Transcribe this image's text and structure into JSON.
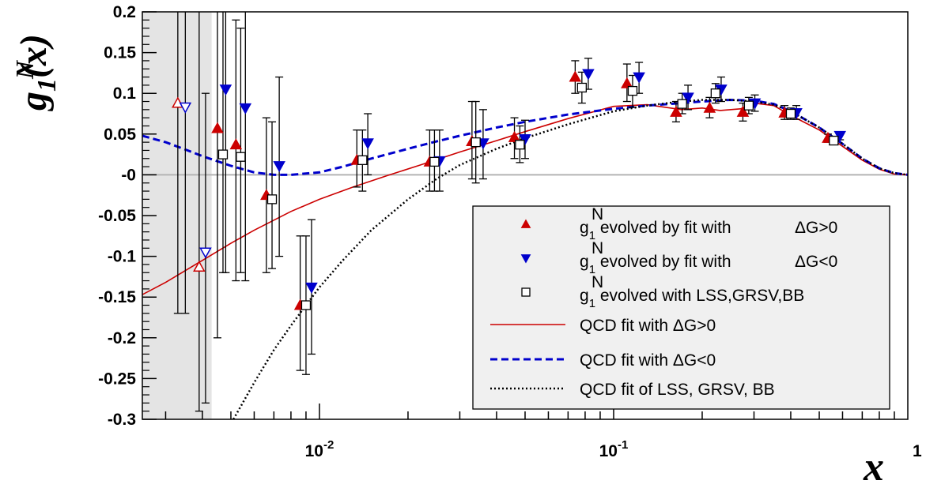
{
  "chart_data": {
    "type": "scatter",
    "title": "",
    "xlabel": "x",
    "ylabel": "g",
    "ylabel_sup": "N",
    "ylabel_sub": "1",
    "ylabel_arg": "(x)",
    "x_scale": "log",
    "xlim": [
      0.0025,
      1
    ],
    "ylim": [
      -0.3,
      0.2
    ],
    "x_tick_labels": [
      {
        "base": "10",
        "exp": "-2",
        "value": 0.01
      },
      {
        "base": "10",
        "exp": "-1",
        "value": 0.1
      },
      {
        "base": "1",
        "exp": "",
        "value": 1
      }
    ],
    "y_tick_labels": [
      "-0.3",
      "-0.25",
      "-0.2",
      "-0.15",
      "-0.1",
      "-0.05",
      "-0",
      "0.05",
      "0.1",
      "0.15",
      "0.2"
    ],
    "y_tick_values": [
      -0.3,
      -0.25,
      -0.2,
      -0.15,
      -0.1,
      -0.05,
      0,
      0.05,
      0.1,
      0.15,
      0.2
    ],
    "grid": false,
    "zero_line": true,
    "shaded_region_x": [
      0.0025,
      0.0043
    ],
    "legend_position": "bottom-right",
    "legend": [
      {
        "marker": "triangle-up",
        "color": "#cc0000",
        "g": "g",
        "sub": "1",
        "sup": "N",
        "text": "evolved by fit with",
        "tail": "ΔG>0"
      },
      {
        "marker": "triangle-down",
        "color": "#0000cc",
        "g": "g",
        "sub": "1",
        "sup": "N",
        "text": "evolved by fit with",
        "tail": "ΔG<0"
      },
      {
        "marker": "square-open",
        "color": "#000000",
        "g": "g",
        "sub": "1",
        "sup": "N",
        "text": "evolved with LSS,GRSV,BB",
        "tail": ""
      },
      {
        "line": "solid",
        "color": "#cc0000",
        "text": "QCD fit with ΔG>0"
      },
      {
        "line": "dashed",
        "color": "#0000cc",
        "text": "QCD fit with ΔG<0"
      },
      {
        "line": "dotted",
        "color": "#000000",
        "text": "QCD fit of LSS, GRSV, BB"
      }
    ],
    "series": [
      {
        "marker": "triangle-up",
        "color": "#cc0000",
        "points": [
          {
            "x": 0.0033,
            "y": 0.088,
            "lo": -0.17,
            "hi": 0.2,
            "open": true
          },
          {
            "x": 0.0039,
            "y": -0.113,
            "lo": -0.29,
            "hi": 0.2,
            "open": true
          },
          {
            "x": 0.0045,
            "y": 0.057,
            "lo": -0.2,
            "hi": 0.2
          },
          {
            "x": 0.0052,
            "y": 0.037,
            "lo": -0.13,
            "hi": 0.19
          },
          {
            "x": 0.0066,
            "y": -0.025,
            "lo": -0.12,
            "hi": 0.07
          },
          {
            "x": 0.0086,
            "y": -0.16,
            "lo": -0.24,
            "hi": -0.075
          },
          {
            "x": 0.0134,
            "y": 0.018,
            "lo": -0.015,
            "hi": 0.055
          },
          {
            "x": 0.0237,
            "y": 0.016,
            "lo": -0.02,
            "hi": 0.055
          },
          {
            "x": 0.033,
            "y": 0.041,
            "lo": -0.005,
            "hi": 0.09
          },
          {
            "x": 0.046,
            "y": 0.046,
            "lo": 0.02,
            "hi": 0.07
          },
          {
            "x": 0.074,
            "y": 0.12,
            "lo": 0.1,
            "hi": 0.14
          },
          {
            "x": 0.111,
            "y": 0.112,
            "lo": 0.09,
            "hi": 0.136
          },
          {
            "x": 0.163,
            "y": 0.077,
            "lo": 0.065,
            "hi": 0.09
          },
          {
            "x": 0.212,
            "y": 0.082,
            "lo": 0.07,
            "hi": 0.095
          },
          {
            "x": 0.275,
            "y": 0.077,
            "lo": 0.066,
            "hi": 0.088
          },
          {
            "x": 0.381,
            "y": 0.076,
            "lo": 0.068,
            "hi": 0.085
          },
          {
            "x": 0.535,
            "y": 0.045,
            "lo": 0.04,
            "hi": 0.05
          }
        ]
      },
      {
        "marker": "triangle-down",
        "color": "#0000cc",
        "points": [
          {
            "x": 0.0035,
            "y": 0.083,
            "lo": -0.17,
            "hi": 0.2,
            "open": true
          },
          {
            "x": 0.0041,
            "y": -0.095,
            "lo": -0.28,
            "hi": 0.1,
            "open": true
          },
          {
            "x": 0.0048,
            "y": 0.105,
            "lo": -0.12,
            "hi": 0.2
          },
          {
            "x": 0.0056,
            "y": 0.082,
            "lo": -0.13,
            "hi": 0.2
          },
          {
            "x": 0.0073,
            "y": 0.011,
            "lo": -0.1,
            "hi": 0.12
          },
          {
            "x": 0.0094,
            "y": -0.138,
            "lo": -0.22,
            "hi": -0.055
          },
          {
            "x": 0.0146,
            "y": 0.039,
            "lo": 0.0,
            "hi": 0.075
          },
          {
            "x": 0.0256,
            "y": 0.017,
            "lo": -0.02,
            "hi": 0.055
          },
          {
            "x": 0.036,
            "y": 0.039,
            "lo": -0.005,
            "hi": 0.08
          },
          {
            "x": 0.05,
            "y": 0.044,
            "lo": 0.02,
            "hi": 0.067
          },
          {
            "x": 0.082,
            "y": 0.124,
            "lo": 0.105,
            "hi": 0.143
          },
          {
            "x": 0.122,
            "y": 0.12,
            "lo": 0.1,
            "hi": 0.138
          },
          {
            "x": 0.179,
            "y": 0.095,
            "lo": 0.08,
            "hi": 0.11
          },
          {
            "x": 0.232,
            "y": 0.105,
            "lo": 0.09,
            "hi": 0.12
          },
          {
            "x": 0.302,
            "y": 0.088,
            "lo": 0.078,
            "hi": 0.098
          },
          {
            "x": 0.418,
            "y": 0.076,
            "lo": 0.068,
            "hi": 0.085
          },
          {
            "x": 0.588,
            "y": 0.048,
            "lo": 0.043,
            "hi": 0.053
          }
        ]
      },
      {
        "marker": "square-open",
        "color": "#000000",
        "points": [
          {
            "x": 0.0047,
            "y": 0.025,
            "lo": -0.12,
            "hi": 0.2
          },
          {
            "x": 0.0054,
            "y": 0.022,
            "lo": -0.12,
            "hi": 0.18
          },
          {
            "x": 0.0069,
            "y": -0.03,
            "lo": -0.115,
            "hi": 0.065
          },
          {
            "x": 0.009,
            "y": -0.16,
            "lo": -0.245,
            "hi": -0.075
          },
          {
            "x": 0.014,
            "y": 0.018,
            "lo": -0.02,
            "hi": 0.055
          },
          {
            "x": 0.0246,
            "y": 0.016,
            "lo": -0.02,
            "hi": 0.055
          },
          {
            "x": 0.034,
            "y": 0.04,
            "lo": -0.01,
            "hi": 0.09
          },
          {
            "x": 0.048,
            "y": 0.037,
            "lo": 0.015,
            "hi": 0.06
          },
          {
            "x": 0.078,
            "y": 0.107,
            "lo": 0.088,
            "hi": 0.126
          },
          {
            "x": 0.116,
            "y": 0.103,
            "lo": 0.083,
            "hi": 0.122
          },
          {
            "x": 0.171,
            "y": 0.087,
            "lo": 0.075,
            "hi": 0.1
          },
          {
            "x": 0.222,
            "y": 0.1,
            "lo": 0.088,
            "hi": 0.112
          },
          {
            "x": 0.288,
            "y": 0.085,
            "lo": 0.075,
            "hi": 0.095
          },
          {
            "x": 0.4,
            "y": 0.075,
            "lo": 0.068,
            "hi": 0.082
          },
          {
            "x": 0.56,
            "y": 0.042,
            "lo": 0.038,
            "hi": 0.046
          }
        ]
      }
    ],
    "curves": [
      {
        "name": "QCD fit with ΔG>0",
        "style": "solid",
        "color": "#cc0000",
        "x": [
          0.0025,
          0.003,
          0.004,
          0.005,
          0.006,
          0.008,
          0.01,
          0.013,
          0.017,
          0.022,
          0.03,
          0.04,
          0.05,
          0.07,
          0.1,
          0.13,
          0.17,
          0.2,
          0.23,
          0.27,
          0.3,
          0.35,
          0.4,
          0.5,
          0.6,
          0.7,
          0.8,
          0.9,
          1.0
        ],
        "y": [
          -0.147,
          -0.132,
          -0.105,
          -0.084,
          -0.068,
          -0.045,
          -0.03,
          -0.015,
          -0.001,
          0.012,
          0.028,
          0.042,
          0.053,
          0.069,
          0.084,
          0.086,
          0.08,
          0.082,
          0.079,
          0.081,
          0.088,
          0.085,
          0.073,
          0.055,
          0.035,
          0.018,
          0.007,
          0.001,
          0.0
        ]
      },
      {
        "name": "QCD fit with ΔG<0",
        "style": "dashed",
        "color": "#0000cc",
        "x": [
          0.0025,
          0.003,
          0.0035,
          0.004,
          0.005,
          0.006,
          0.007,
          0.008,
          0.01,
          0.012,
          0.015,
          0.02,
          0.025,
          0.03,
          0.04,
          0.05,
          0.07,
          0.1,
          0.13,
          0.17,
          0.2,
          0.25,
          0.3,
          0.35,
          0.4,
          0.5,
          0.6,
          0.7,
          0.8,
          0.9,
          1.0
        ],
        "y": [
          0.048,
          0.04,
          0.031,
          0.023,
          0.011,
          0.003,
          0.0,
          0.0,
          0.003,
          0.01,
          0.02,
          0.032,
          0.041,
          0.048,
          0.058,
          0.065,
          0.074,
          0.081,
          0.085,
          0.088,
          0.09,
          0.092,
          0.091,
          0.087,
          0.078,
          0.058,
          0.038,
          0.02,
          0.008,
          0.002,
          0.0
        ]
      },
      {
        "name": "QCD fit of LSS, GRSV, BB",
        "style": "dotted",
        "color": "#000000",
        "x": [
          0.0051,
          0.006,
          0.007,
          0.008,
          0.009,
          0.01,
          0.012,
          0.015,
          0.02,
          0.025,
          0.03,
          0.04,
          0.05,
          0.07,
          0.1,
          0.13,
          0.17,
          0.2,
          0.25,
          0.3,
          0.35,
          0.4,
          0.5,
          0.6,
          0.7,
          0.8,
          0.9,
          1.0
        ],
        "y": [
          -0.3,
          -0.255,
          -0.215,
          -0.185,
          -0.16,
          -0.138,
          -0.105,
          -0.068,
          -0.03,
          -0.005,
          0.012,
          0.032,
          0.045,
          0.062,
          0.078,
          0.085,
          0.09,
          0.092,
          0.092,
          0.09,
          0.086,
          0.078,
          0.058,
          0.038,
          0.02,
          0.008,
          0.002,
          0.0
        ]
      }
    ]
  }
}
